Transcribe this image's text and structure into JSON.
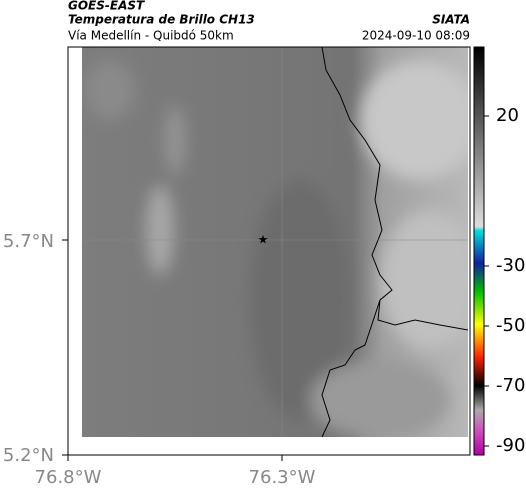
{
  "header": {
    "title": "GOES-EAST",
    "subtitle": "Temperatura de Brillo CH13",
    "source": "SIATA",
    "region": "Vía Medellín - Quibdó 50km",
    "timestamp": "2024-09-10 08:09"
  },
  "map": {
    "x_ticks": [
      "76.8°W",
      "76.3°W"
    ],
    "y_ticks": [
      "5.7°N",
      "5.2°N"
    ]
  },
  "colorbar": {
    "range": [
      43,
      -93
    ],
    "ticks": [
      20,
      -30,
      -50,
      -70,
      -90
    ]
  }
}
